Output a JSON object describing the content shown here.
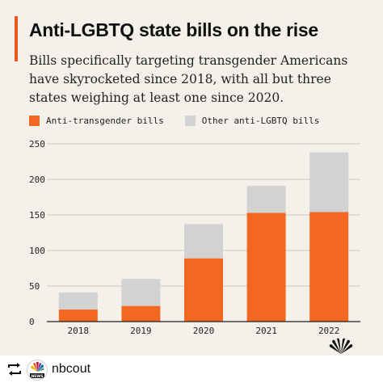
{
  "title": "Anti-LGBTQ state bills on the rise",
  "subtitle": "Bills specifically targeting transgender Americans have skyrocketed since 2018, with all but three states weighing at least one since 2020.",
  "legend": {
    "anti_trans": "Anti-transgender bills",
    "other": "Other anti-LGBTQ bills"
  },
  "colors": {
    "anti_trans": "#f26722",
    "other": "#d2d2d2",
    "accent": "#e85b1a"
  },
  "footer": {
    "handle": "nbcout",
    "avatar_text": "NEWS"
  },
  "chart_data": {
    "type": "bar",
    "stacked": true,
    "categories": [
      "2018",
      "2019",
      "2020",
      "2021",
      "2022"
    ],
    "series": [
      {
        "name": "Anti-transgender bills",
        "values": [
          17,
          22,
          89,
          153,
          154
        ]
      },
      {
        "name": "Other anti-LGBTQ bills",
        "values": [
          24,
          38,
          48,
          38,
          84
        ]
      }
    ],
    "totals": [
      41,
      60,
      137,
      191,
      238
    ],
    "ylim": [
      0,
      250
    ],
    "yticks": [
      0,
      50,
      100,
      150,
      200,
      250
    ],
    "grid": true,
    "legend_position": "top-left"
  }
}
